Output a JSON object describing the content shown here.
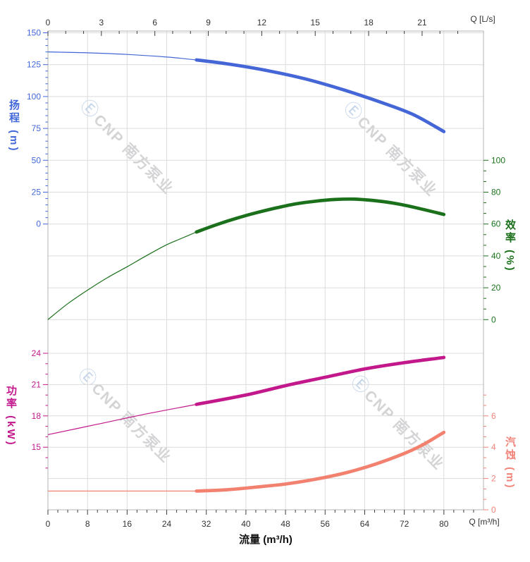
{
  "chart_data": {
    "type": "line",
    "title": "",
    "axes": {
      "top": {
        "unit": "Q [L/s]",
        "tick_labels": [
          "0",
          "3",
          "6",
          "9",
          "12",
          "15",
          "18",
          "21"
        ],
        "tick_step_ls": 3,
        "minor_step_ls": 1,
        "max_ls": 24.4
      },
      "bottom": {
        "label": "流量 (m³/h)",
        "unit": "Q [m³/h]",
        "tick_labels": [
          "0",
          "8",
          "16",
          "24",
          "32",
          "40",
          "48",
          "56",
          "64",
          "72",
          "80"
        ],
        "tick_step": 8,
        "minor_step": 2,
        "max": 88
      },
      "head": {
        "title": "扬程 (m)",
        "color": "#4268d9",
        "tick_labels": [
          "150",
          "125",
          "100",
          "75",
          "50",
          "25",
          "0"
        ],
        "range": [
          0,
          150
        ],
        "minor_step": 5
      },
      "eff": {
        "title": "效率 (%)",
        "color": "#1b701b",
        "tick_labels": [
          "100",
          "80",
          "60",
          "40",
          "20",
          "0"
        ],
        "range": [
          0,
          100
        ]
      },
      "power": {
        "title": "功率 (kW)",
        "color": "#c2188c",
        "tick_labels": [
          "24",
          "21",
          "18",
          "15"
        ],
        "range": [
          15,
          24
        ],
        "minor_step": 1
      },
      "npsh": {
        "title": "汽蚀 (m)",
        "color": "#f28379",
        "tick_labels": [
          "6",
          "4",
          "2",
          "0"
        ],
        "range": [
          0,
          6
        ]
      }
    },
    "series": [
      {
        "name": "head-curve",
        "axis": "head",
        "color": "#4566d6",
        "thin_to": 30,
        "points": [
          [
            0,
            135
          ],
          [
            8,
            134.3
          ],
          [
            16,
            133
          ],
          [
            24,
            131
          ],
          [
            30,
            128.7
          ],
          [
            36,
            125.8
          ],
          [
            44,
            120.6
          ],
          [
            52,
            113.8
          ],
          [
            60,
            104.9
          ],
          [
            68,
            94.5
          ],
          [
            74,
            85.5
          ],
          [
            80,
            72.5
          ]
        ]
      },
      {
        "name": "efficiency-curve",
        "axis": "eff",
        "color": "#1b701b",
        "thin_to": 30,
        "points": [
          [
            0,
            0
          ],
          [
            4,
            10
          ],
          [
            8,
            18.5
          ],
          [
            12,
            26.3
          ],
          [
            16,
            33.2
          ],
          [
            20,
            40.3
          ],
          [
            24,
            47
          ],
          [
            27,
            51
          ],
          [
            30,
            55
          ],
          [
            34,
            59.5
          ],
          [
            38,
            63.5
          ],
          [
            42,
            67
          ],
          [
            46,
            70
          ],
          [
            50,
            72.6
          ],
          [
            54,
            74.3
          ],
          [
            58,
            75.4
          ],
          [
            62,
            75.6
          ],
          [
            66,
            74.7
          ],
          [
            70,
            73
          ],
          [
            74,
            70.5
          ],
          [
            80,
            66
          ]
        ]
      },
      {
        "name": "power-curve",
        "axis": "power",
        "color": "#c2188c",
        "thin_to": 30,
        "points": [
          [
            0,
            16.2
          ],
          [
            10,
            17.2
          ],
          [
            20,
            18.2
          ],
          [
            30,
            19.1
          ],
          [
            40,
            20
          ],
          [
            48,
            20.9
          ],
          [
            56,
            21.7
          ],
          [
            64,
            22.5
          ],
          [
            72,
            23.1
          ],
          [
            80,
            23.6
          ]
        ]
      },
      {
        "name": "npsh-curve",
        "axis": "npsh",
        "color": "#f2816f",
        "thin_to": 30,
        "points": [
          [
            0,
            1.2
          ],
          [
            10,
            1.2
          ],
          [
            20,
            1.2
          ],
          [
            30,
            1.2
          ],
          [
            36,
            1.28
          ],
          [
            42,
            1.45
          ],
          [
            48,
            1.65
          ],
          [
            54,
            1.95
          ],
          [
            60,
            2.35
          ],
          [
            66,
            2.9
          ],
          [
            72,
            3.6
          ],
          [
            76,
            4.2
          ],
          [
            80,
            4.95
          ]
        ]
      }
    ],
    "grid": {
      "color": "#dcdcdc",
      "border_color": "#b3b3b3",
      "tick_color": "#3c3c3c",
      "label_color": "#333333"
    }
  },
  "watermark": {
    "logo_glyph": "Ⓔ",
    "text": "CNP 南方泵业",
    "text_color": "#d4d4d6",
    "logo_color": "#c5d5ea"
  }
}
